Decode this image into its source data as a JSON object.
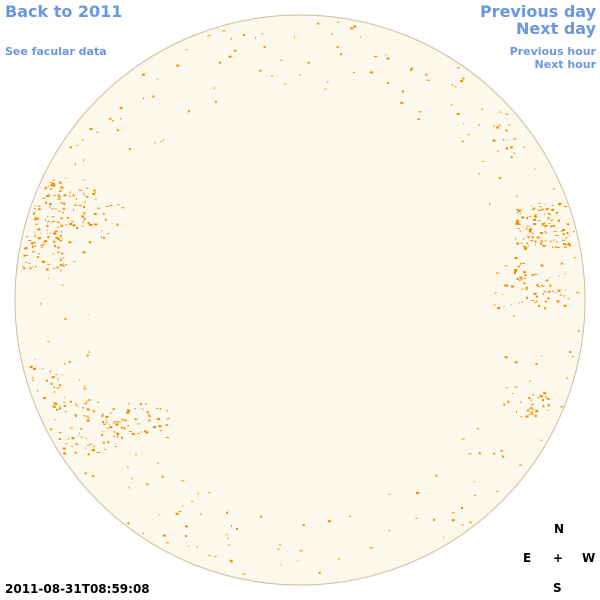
{
  "nav": {
    "back_link": "Back to 2011",
    "facular_link": "See facular data",
    "previous_day": "Previous day",
    "next_day": "Next day",
    "previous_hour": "Previous hour",
    "next_hour": "Next hour"
  },
  "timestamp": "2011-08-31T08:59:08",
  "compass": {
    "north": "N",
    "east": "E",
    "center": "+",
    "west": "W",
    "south": "S"
  }
}
